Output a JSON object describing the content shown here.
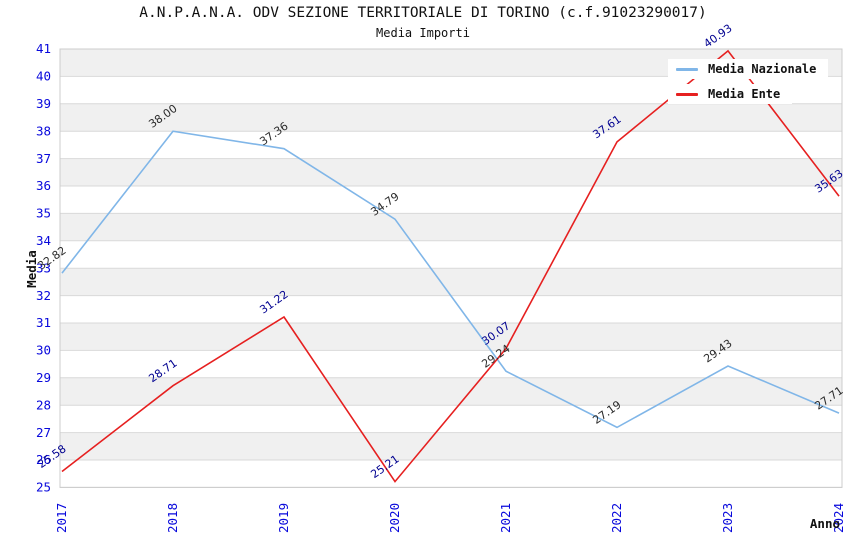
{
  "chart_data": {
    "type": "line",
    "title": "A.N.P.A.N.A. ODV SEZIONE TERRITORIALE DI TORINO (c.f.91023290017)",
    "subtitle": "Media Importi",
    "xlabel": "Anno",
    "ylabel": "Media",
    "x": [
      "2017",
      "2018",
      "2019",
      "2020",
      "2021",
      "2022",
      "2023",
      "2024"
    ],
    "series": [
      {
        "name": "Media Nazionale",
        "color": "#80b6e8",
        "label_color": "#2a2a2a",
        "values": [
          32.82,
          38.0,
          37.36,
          34.79,
          29.24,
          27.19,
          29.43,
          27.71
        ]
      },
      {
        "name": "Media Ente",
        "color": "#e62020",
        "label_color": "#000090",
        "values": [
          25.58,
          28.71,
          31.22,
          25.21,
          30.07,
          37.61,
          40.93,
          35.63
        ]
      }
    ],
    "ylim": [
      25,
      41
    ],
    "y_tick_step": 1,
    "grid": "horizontal-alternating-bands",
    "legend_position": "top-right",
    "colors": {
      "tick_label": "#0808dc",
      "grid_band": "#f0f0f0",
      "grid_line": "#d9d9d9",
      "plot_border": "#cccccc",
      "title": "#111111"
    }
  }
}
